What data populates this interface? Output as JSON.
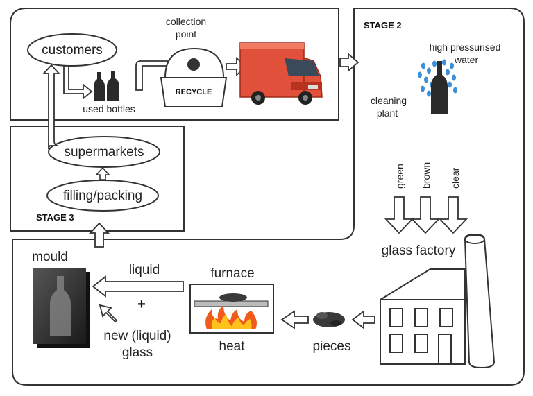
{
  "stages": {
    "stage2": "STAGE 2",
    "stage3": "STAGE 3"
  },
  "stage1": {
    "customers": "customers",
    "used_bottles": "used bottles",
    "collection_point_line1": "collection",
    "collection_point_line2": "point",
    "recycle": "RECYCLE"
  },
  "stage2": {
    "water_line1": "high pressurised",
    "water_line2": "water",
    "cleaning_line1": "cleaning",
    "cleaning_line2": "plant"
  },
  "sorting": {
    "colours": [
      "green",
      "brown",
      "clear"
    ],
    "factory": "glass factory"
  },
  "stage4": {
    "mould": "mould",
    "liquid": "liquid",
    "plus": "+",
    "new_glass_line1": "new (liquid)",
    "new_glass_line2": "glass",
    "furnace": "furnace",
    "heat": "heat",
    "pieces": "pieces"
  },
  "stage3": {
    "supermarkets": "supermarkets",
    "filling": "filling/packing"
  },
  "colors": {
    "truck_body": "#e0503a",
    "truck_dark": "#b83220",
    "water_drops": "#3a8fd6",
    "flame_outer": "#f05a1a",
    "flame_inner": "#ffc21a",
    "bottle_dark": "#222222",
    "mould_dark": "#2e2e2e"
  }
}
